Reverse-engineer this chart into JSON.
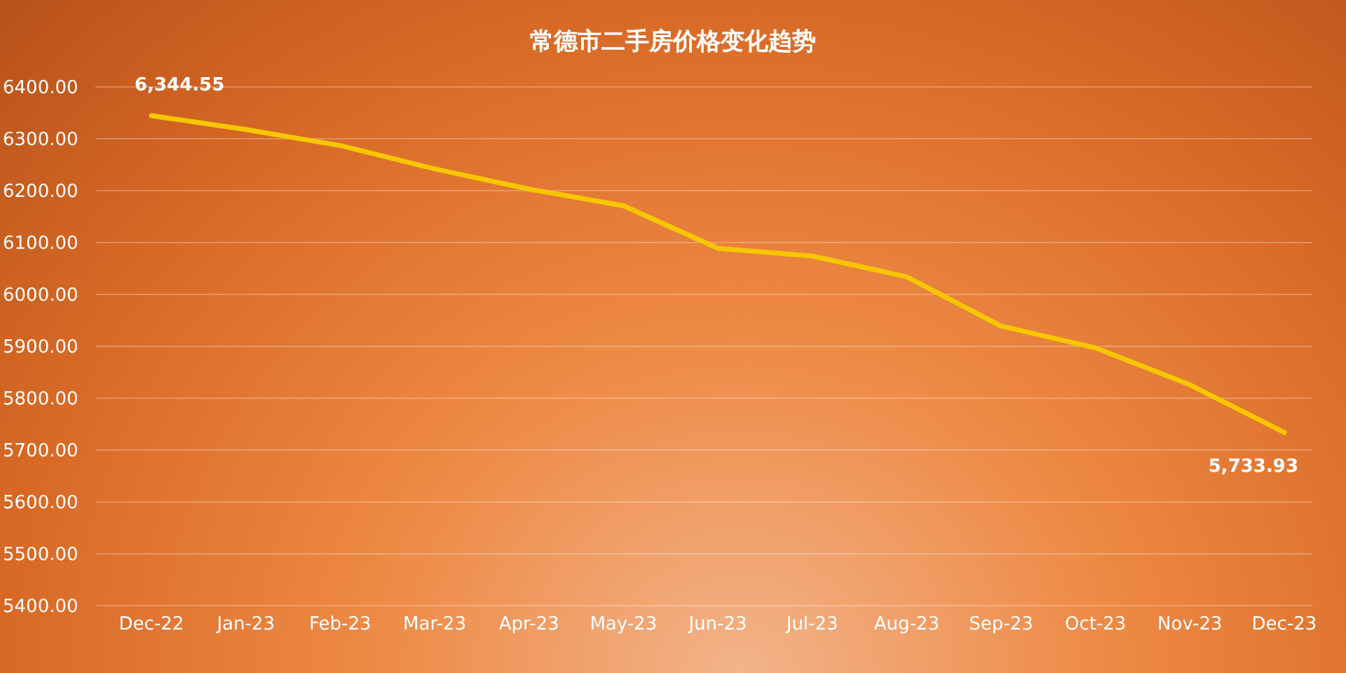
{
  "chart_data": {
    "type": "line",
    "title": "常德市二手房价格变化趋势",
    "categories": [
      "Dec-22",
      "Jan-23",
      "Feb-23",
      "Mar-23",
      "Apr-23",
      "May-23",
      "Jun-23",
      "Jul-23",
      "Aug-23",
      "Sep-23",
      "Oct-23",
      "Nov-23",
      "Dec-23"
    ],
    "series": [
      {
        "color": "#f7c600",
        "values": [
          6344.55,
          6318,
          6287,
          6242,
          6203,
          6171,
          6089,
          6074,
          6034,
          5939,
          5897,
          5826,
          5733.93
        ],
        "value_labels": [
          "6,344.55",
          null,
          null,
          null,
          null,
          null,
          null,
          null,
          null,
          null,
          null,
          null,
          "5,733.93"
        ]
      }
    ],
    "ylim": [
      5400,
      6400
    ],
    "yticks": [
      {
        "value": 5400,
        "label": "5400.00"
      },
      {
        "value": 5500,
        "label": "5500.00"
      },
      {
        "value": 5600,
        "label": "5600.00"
      },
      {
        "value": 5700,
        "label": "5700.00"
      },
      {
        "value": 5800,
        "label": "5800.00"
      },
      {
        "value": 5900,
        "label": "5900.00"
      },
      {
        "value": 6000,
        "label": "6000.00"
      },
      {
        "value": 6100,
        "label": "6100.00"
      },
      {
        "value": 6200,
        "label": "6200.00"
      },
      {
        "value": 6300,
        "label": "6300.00"
      },
      {
        "value": 6400,
        "label": "6400.00"
      }
    ],
    "grid": "y",
    "marker": "none",
    "line_style": "solid"
  }
}
